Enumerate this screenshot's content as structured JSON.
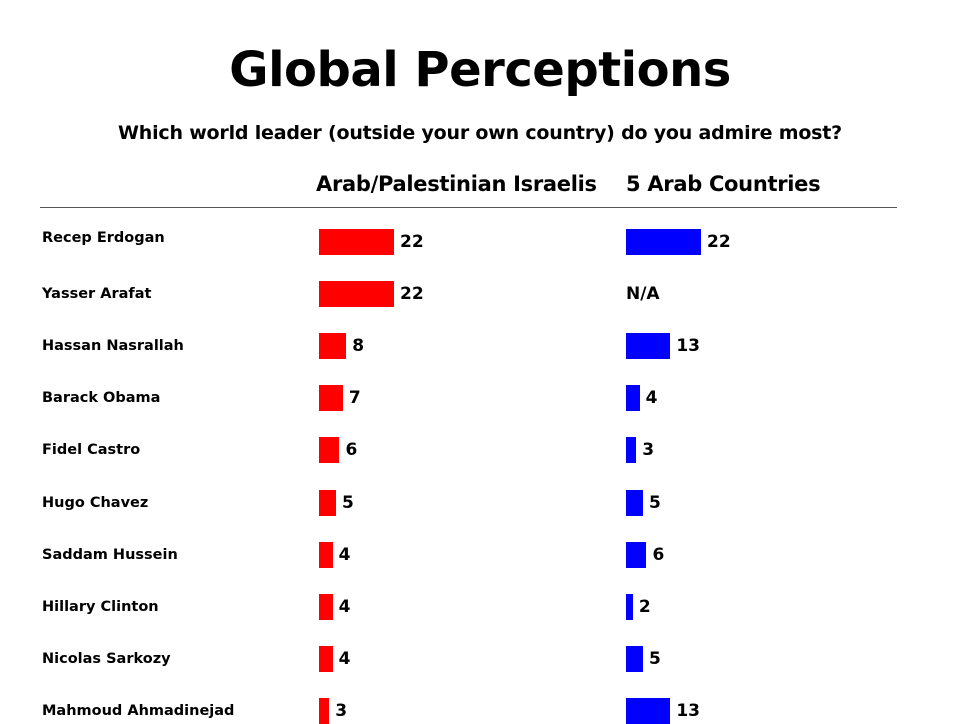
{
  "chart_data": {
    "type": "bar",
    "title": "Global Perceptions",
    "subtitle": "Which world leader (outside your own country) do you admire most?",
    "categories": [
      "Recep Erdogan",
      "Yasser Arafat",
      "Hassan  Nasrallah",
      "Barack Obama",
      "Fidel Castro",
      "Hugo Chavez",
      "Saddam  Hussein",
      "Hillary Clinton",
      "Nicolas  Sarkozy",
      "Mahmoud  Ahmadinejad"
    ],
    "series": [
      {
        "name": "Arab/Palestinian Israelis",
        "values": [
          22,
          22,
          8,
          7,
          6,
          5,
          4,
          4,
          4,
          3
        ],
        "labels": [
          "22",
          "22",
          "8",
          "7",
          "6",
          "5",
          "4",
          "4",
          "4",
          "3"
        ],
        "color": "#ff0000"
      },
      {
        "name": "5 Arab Countries",
        "values": [
          22,
          null,
          13,
          4,
          3,
          5,
          6,
          2,
          5,
          13
        ],
        "labels": [
          "22",
          "N/A",
          "13",
          "4",
          "3",
          "5",
          "6",
          "2",
          "5",
          "13"
        ],
        "color": "#0000ff"
      }
    ],
    "orientation": "horizontal",
    "xlim": [
      0,
      22
    ],
    "grid": false,
    "legend": "column-headers"
  }
}
